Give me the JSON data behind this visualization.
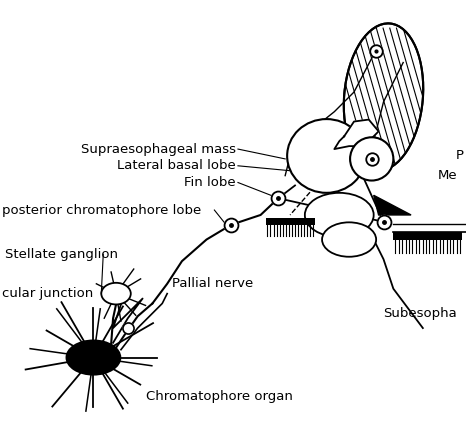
{
  "bg_color": "#ffffff",
  "line_color": "#000000",
  "figsize": [
    4.74,
    4.25
  ],
  "dpi": 100,
  "font_size": 9.5,
  "labels": {
    "supraesophageal_mass": "Supraesophageal mass",
    "lateral_basal_lobe": "Lateral basal lobe",
    "fin_lobe": "Fin lobe",
    "posterior_chromatophore_lobe": "posterior chromatophore lobe",
    "stellate_ganglion": "Stellate ganglion",
    "cular_junction": "cular junction",
    "pallial_nerve": "Pallial nerve",
    "chromatophore_organ": "Chromatophore organ",
    "subesopha": "Subesophа",
    "me": "Me",
    "p": "P"
  }
}
